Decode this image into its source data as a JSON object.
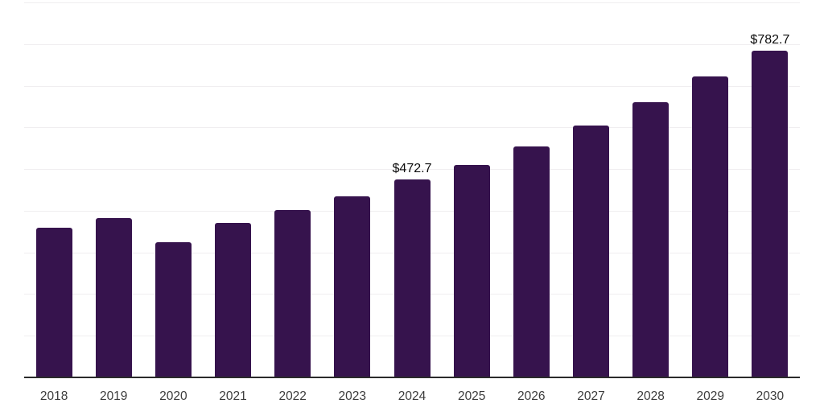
{
  "chart_data": {
    "type": "bar",
    "title": "",
    "xlabel": "",
    "ylabel": "",
    "categories": [
      "2018",
      "2019",
      "2020",
      "2021",
      "2022",
      "2023",
      "2024",
      "2025",
      "2026",
      "2027",
      "2028",
      "2029",
      "2030"
    ],
    "values": [
      357.0,
      381.0,
      323.0,
      369.5,
      399.0,
      433.0,
      472.7,
      508.0,
      552.5,
      602.5,
      658.5,
      720.0,
      782.7
    ],
    "value_labels": {
      "2024": "$472.7",
      "2030": "$782.7"
    },
    "ylim": [
      0,
      900
    ],
    "gridline_interval": 100,
    "grid": "horizontal",
    "legend": "none",
    "colors": {
      "bar": "#36134d",
      "gridline": "#f0eef0",
      "axis_line": "#2b2b2b",
      "tick_label": "#3c3c3c",
      "value_label": "#0c0c0c"
    }
  }
}
